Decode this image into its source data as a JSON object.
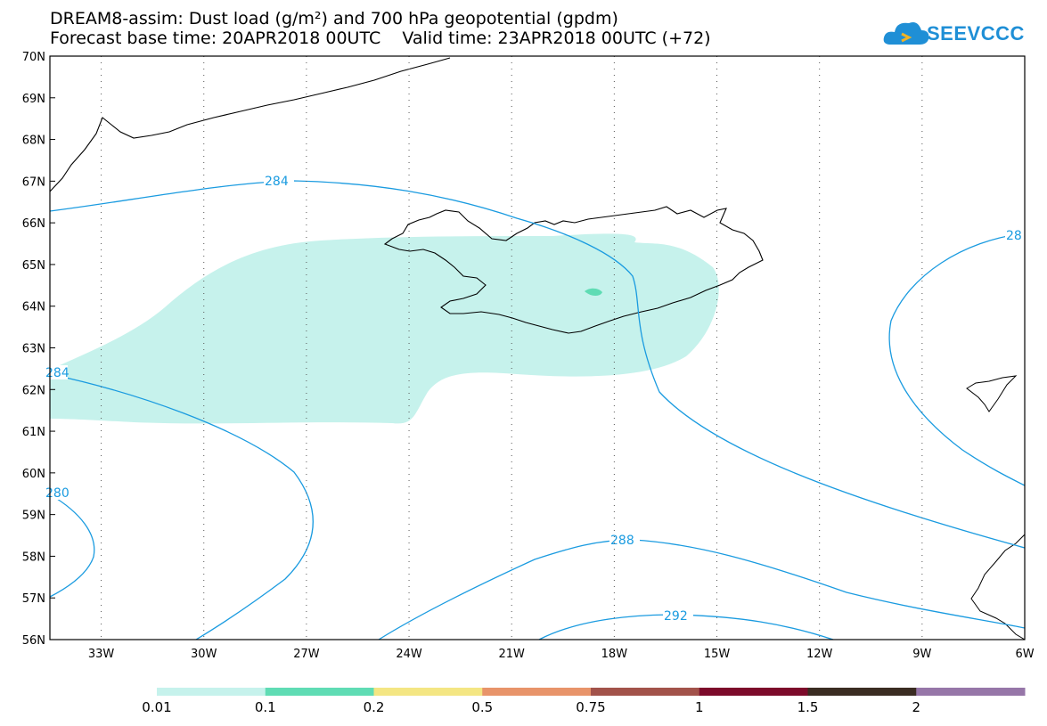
{
  "header": {
    "title_line1": "DREAM8-assim: Dust load (g/m²) and 700 hPa geopotential (gpdm)",
    "title_line2": "Forecast base time: 20APR2018 00UTC    Valid time: 23APR2018 00UTC (+72)"
  },
  "logo": {
    "text": "SEEVCCC"
  },
  "map": {
    "lat_labels": [
      "70N",
      "69N",
      "68N",
      "67N",
      "66N",
      "65N",
      "64N",
      "63N",
      "62N",
      "61N",
      "60N",
      "59N",
      "58N",
      "57N",
      "56N"
    ],
    "lon_labels": [
      "33W",
      "30W",
      "27W",
      "24W",
      "21W",
      "18W",
      "15W",
      "12W",
      "9W",
      "6W"
    ],
    "lat_range": [
      56,
      70
    ],
    "lon_range": [
      -34.5,
      -6
    ],
    "grid": "dotted",
    "contour_labels": [
      "284",
      "284",
      "280",
      "288",
      "292",
      "28"
    ]
  },
  "colorbar": {
    "labels": [
      "0.01",
      "0.1",
      "0.2",
      "0.5",
      "0.75",
      "1",
      "1.5",
      "2"
    ],
    "colors": [
      "#c6f2ec",
      "#5fdcb4",
      "#f4e683",
      "#e8946a",
      "#a2524a",
      "#7c0a2a",
      "#3a2c22",
      "#9676a8"
    ]
  },
  "colors": {
    "contour": "#1a9be0",
    "dust_low": "#c6f2ec",
    "dust_mid": "#5fdcb4",
    "coast": "#000000"
  }
}
